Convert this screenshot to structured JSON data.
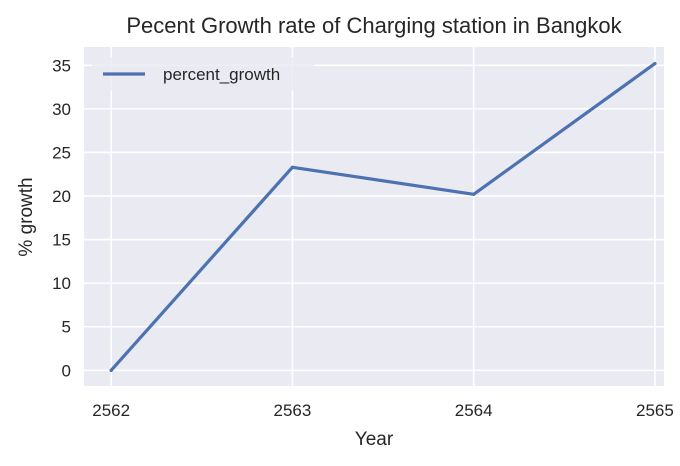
{
  "colors": {
    "plot_background": "#eaeaf2",
    "grid": "#ffffff",
    "line": "#4c72b0",
    "text": "#262626"
  },
  "chart_data": {
    "type": "line",
    "title": "Pecent Growth rate of Charging station in Bangkok",
    "xlabel": "Year",
    "ylabel": "% growth",
    "x": [
      2562,
      2563,
      2564,
      2565
    ],
    "x_tick_labels": [
      "2562",
      "2563",
      "2564",
      "2565"
    ],
    "y_ticks": [
      0,
      5,
      10,
      15,
      20,
      25,
      30,
      35
    ],
    "y_tick_labels": [
      "0",
      "5",
      "10",
      "15",
      "20",
      "25",
      "30",
      "35"
    ],
    "xlim": [
      2561.85,
      2565.05
    ],
    "ylim": [
      -1.8,
      37.1
    ],
    "grid": true,
    "legend_position": "top-left",
    "series": [
      {
        "name": "percent_growth",
        "values": [
          0,
          23.3,
          20.2,
          35.2
        ]
      }
    ]
  }
}
